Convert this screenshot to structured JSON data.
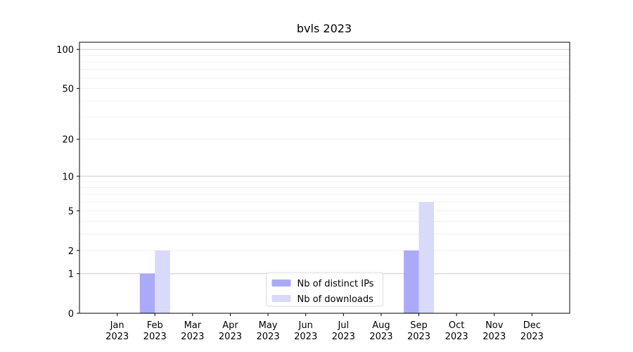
{
  "chart_data": {
    "type": "bar",
    "title": "bvls 2023",
    "categories": [
      "Jan\n2023",
      "Feb\n2023",
      "Mar\n2023",
      "Apr\n2023",
      "May\n2023",
      "Jun\n2023",
      "Jul\n2023",
      "Aug\n2023",
      "Sep\n2023",
      "Oct\n2023",
      "Nov\n2023",
      "Dec\n2023"
    ],
    "series": [
      {
        "name": "Nb of distinct IPs",
        "color": "#aaaaf8",
        "values": [
          0,
          1,
          0,
          0,
          0,
          0,
          0,
          0,
          2,
          0,
          0,
          0
        ]
      },
      {
        "name": "Nb of downloads",
        "color": "#d9d9fa",
        "values": [
          0,
          2,
          0,
          0,
          0,
          0,
          0,
          0,
          6,
          0,
          0,
          0
        ]
      }
    ],
    "yscale": "log1p",
    "ylim": [
      0,
      113.5
    ],
    "yticks": [
      0,
      1,
      2,
      5,
      10,
      20,
      50,
      100
    ],
    "major_grid": [
      1,
      10,
      100
    ],
    "minor_grid": [
      2,
      3,
      4,
      5,
      6,
      7,
      8,
      9,
      20,
      30,
      40,
      50,
      60,
      70,
      80,
      90
    ],
    "grid": true,
    "legend": "lower center"
  }
}
